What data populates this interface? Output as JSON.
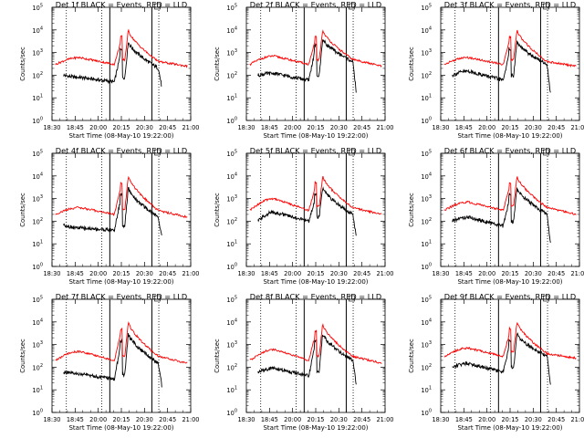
{
  "figure": {
    "time_ticks": [
      "18:30",
      "18:45",
      "20:00",
      "20:15",
      "20:30",
      "20:45",
      "21:00"
    ],
    "xlabel": "Start Time (08-May-10 19:22:00)",
    "ylabel": "Counts/sec",
    "y_ticks": [
      "10",
      "10",
      "10",
      "10",
      "10",
      "10"
    ],
    "y_exponents": [
      "0",
      "1",
      "2",
      "3",
      "4",
      "5"
    ],
    "colors": {
      "events": "#000000",
      "lld": "#ff0000",
      "axes": "#000000"
    }
  },
  "chart_data": [
    {
      "type": "line",
      "title": "Det 1f BLACK = Events, RED = LLD",
      "y_scale": "log",
      "ylim": [
        1,
        100000
      ],
      "x": [
        "18:30",
        "18:45",
        "20:00",
        "20:15",
        "20:30",
        "20:45"
      ],
      "series": [
        {
          "name": "Events",
          "color": "#000000",
          "values": [
            100,
            80,
            50,
            3000,
            200,
            30
          ]
        },
        {
          "name": "LLD",
          "color": "#ff0000",
          "values": [
            300,
            600,
            300,
            10000,
            400,
            250
          ]
        }
      ]
    },
    {
      "type": "line",
      "title": "Det 2f BLACK = Events, RED = LLD",
      "y_scale": "log",
      "ylim": [
        1,
        100000
      ],
      "x": [
        "18:30",
        "18:45",
        "20:00",
        "20:15",
        "20:30",
        "20:45"
      ],
      "series": [
        {
          "name": "Events",
          "color": "#000000",
          "values": [
            100,
            120,
            60,
            4000,
            400,
            20
          ]
        },
        {
          "name": "LLD",
          "color": "#ff0000",
          "values": [
            300,
            700,
            300,
            10000,
            500,
            250
          ]
        }
      ]
    },
    {
      "type": "line",
      "title": "Det 3f BLACK = Events, RED = LLD",
      "y_scale": "log",
      "ylim": [
        1,
        100000
      ],
      "x": [
        "18:30",
        "18:45",
        "20:00",
        "20:15",
        "20:30",
        "20:45"
      ],
      "series": [
        {
          "name": "Events",
          "color": "#000000",
          "values": [
            100,
            150,
            60,
            3000,
            300,
            15
          ]
        },
        {
          "name": "LLD",
          "color": "#ff0000",
          "values": [
            300,
            600,
            300,
            10000,
            400,
            250
          ]
        }
      ]
    },
    {
      "type": "line",
      "title": "Det 4f BLACK = Events, RED = LLD",
      "y_scale": "log",
      "ylim": [
        1,
        100000
      ],
      "x": [
        "18:30",
        "18:45",
        "20:00",
        "20:15",
        "20:30",
        "20:45"
      ],
      "series": [
        {
          "name": "Events",
          "color": "#000000",
          "values": [
            70,
            50,
            40,
            3000,
            150,
            20
          ]
        },
        {
          "name": "LLD",
          "color": "#ff0000",
          "values": [
            200,
            400,
            200,
            10000,
            300,
            150
          ]
        }
      ]
    },
    {
      "type": "line",
      "title": "Det 5f BLACK = Events, RED = LLD",
      "y_scale": "log",
      "ylim": [
        1,
        100000
      ],
      "x": [
        "18:30",
        "18:45",
        "20:00",
        "20:15",
        "20:30",
        "20:45"
      ],
      "series": [
        {
          "name": "Events",
          "color": "#000000",
          "values": [
            100,
            250,
            100,
            3000,
            200,
            25
          ]
        },
        {
          "name": "LLD",
          "color": "#ff0000",
          "values": [
            300,
            1000,
            300,
            10000,
            400,
            200
          ]
        }
      ]
    },
    {
      "type": "line",
      "title": "Det 6f BLACK = Events, RED = LLD",
      "y_scale": "log",
      "ylim": [
        1,
        100000
      ],
      "x": [
        "18:30",
        "18:45",
        "20:00",
        "20:15",
        "20:30",
        "20:45"
      ],
      "series": [
        {
          "name": "Events",
          "color": "#000000",
          "values": [
            100,
            150,
            60,
            3000,
            200,
            10
          ]
        },
        {
          "name": "LLD",
          "color": "#ff0000",
          "values": [
            300,
            700,
            300,
            10000,
            400,
            200
          ]
        }
      ]
    },
    {
      "type": "line",
      "title": "Det 7f BLACK = Events, RED = LLD",
      "y_scale": "log",
      "ylim": [
        1,
        100000
      ],
      "x": [
        "18:30",
        "18:45",
        "20:00",
        "20:15",
        "20:30",
        "20:45"
      ],
      "series": [
        {
          "name": "Events",
          "color": "#000000",
          "values": [
            60,
            50,
            30,
            3000,
            150,
            15
          ]
        },
        {
          "name": "LLD",
          "color": "#ff0000",
          "values": [
            200,
            500,
            200,
            10000,
            300,
            150
          ]
        }
      ]
    },
    {
      "type": "line",
      "title": "Det 8f BLACK = Events, RED = LLD",
      "y_scale": "log",
      "ylim": [
        1,
        100000
      ],
      "x": [
        "18:30",
        "18:45",
        "20:00",
        "20:15",
        "20:30",
        "20:45"
      ],
      "series": [
        {
          "name": "Events",
          "color": "#000000",
          "values": [
            60,
            90,
            40,
            3000,
            200,
            20
          ]
        },
        {
          "name": "LLD",
          "color": "#ff0000",
          "values": [
            200,
            600,
            200,
            8000,
            300,
            150
          ]
        }
      ]
    },
    {
      "type": "line",
      "title": "Det 9f BLACK = Events, RED = LLD",
      "y_scale": "log",
      "ylim": [
        1,
        100000
      ],
      "x": [
        "18:30",
        "18:45",
        "20:00",
        "20:15",
        "20:30",
        "20:45"
      ],
      "series": [
        {
          "name": "Events",
          "color": "#000000",
          "values": [
            100,
            150,
            60,
            3000,
            300,
            15
          ]
        },
        {
          "name": "LLD",
          "color": "#ff0000",
          "values": [
            300,
            700,
            300,
            10000,
            400,
            250
          ]
        }
      ]
    }
  ]
}
